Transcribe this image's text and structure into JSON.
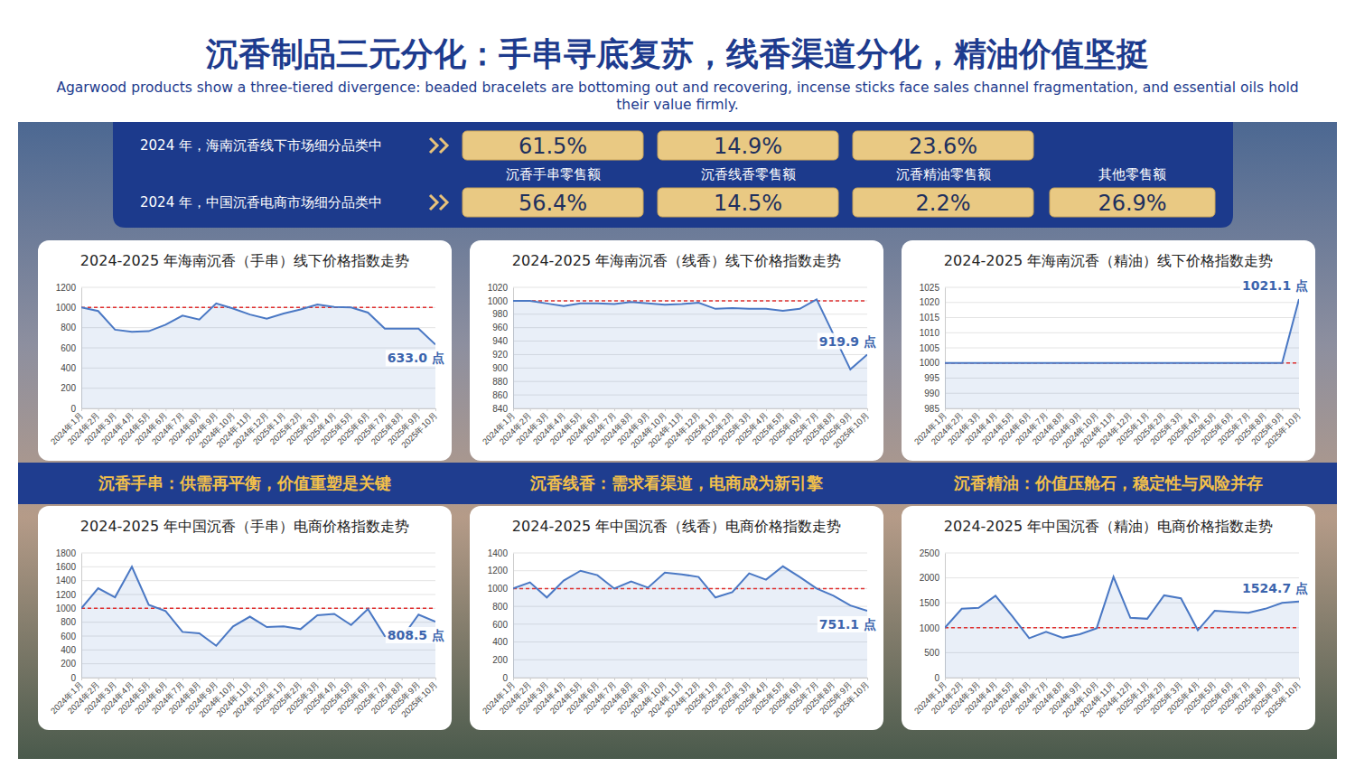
{
  "header": {
    "title": "沉香制品三元分化：手串寻底复苏，线香渠道分化，精油价值坚挺",
    "subtitle": "Agarwood products show a three-tiered divergence: beaded bracelets are bottoming out and recovering, incense sticks face sales channel fragmentation, and essential oils hold their value firmly."
  },
  "summary": {
    "categories": [
      "沉香手串零售额",
      "沉香线香零售额",
      "沉香精油零售额",
      "其他零售额"
    ],
    "rows": [
      {
        "label": "2024 年，海南沉香线下市场细分品类中",
        "cells": [
          "61.5%",
          "14.9%",
          "23.6%",
          null
        ]
      },
      {
        "label": "2024 年，中国沉香电商市场细分品类中",
        "cells": [
          "56.4%",
          "14.5%",
          "2.2%",
          "26.9%"
        ]
      }
    ]
  },
  "sections": [
    "沉香手串：供需再平衡，价值重塑是关键",
    "沉香线香：需求看渠道，电商成为新引擎",
    "沉香精油：价值压舱石，稳定性与风险并存"
  ],
  "chart_data": [
    {
      "type": "area",
      "title": "2024-2025 年海南沉香（手串）线下价格指数走势",
      "color": "#4a78c4",
      "grid": true,
      "categories": [
        "2024年1月",
        "2024年2月",
        "2024年3月",
        "2024年4月",
        "2024年5月",
        "2024年6月",
        "2024年7月",
        "2024年8月",
        "2024年9月",
        "2024年10月",
        "2024年11月",
        "2024年12月",
        "2025年1月",
        "2025年2月",
        "2025年3月",
        "2025年4月",
        "2025年5月",
        "2025年6月",
        "2025年7月",
        "2025年8月",
        "2025年9月",
        "2025年10月"
      ],
      "values": [
        1000,
        965,
        780,
        760,
        765,
        830,
        920,
        880,
        1040,
        990,
        930,
        890,
        940,
        980,
        1030,
        1005,
        1000,
        950,
        790,
        790,
        790,
        633.0
      ],
      "value_labels": [
        null,
        null,
        null,
        null,
        null,
        null,
        null,
        null,
        null,
        null,
        null,
        null,
        null,
        null,
        null,
        null,
        null,
        null,
        null,
        null,
        null,
        "633.0 点"
      ],
      "baseline": 1000,
      "ylim": [
        0,
        1200
      ],
      "yticks": [
        0,
        200,
        400,
        600,
        800,
        1000,
        1200
      ]
    },
    {
      "type": "area",
      "title": "2024-2025 年海南沉香（线香）线下价格指数走势",
      "color": "#4a78c4",
      "grid": true,
      "categories": [
        "2024年1月",
        "2024年2月",
        "2024年3月",
        "2024年4月",
        "2024年5月",
        "2024年6月",
        "2024年7月",
        "2024年8月",
        "2024年9月",
        "2024年10月",
        "2024年11月",
        "2024年12月",
        "2025年1月",
        "2025年2月",
        "2025年3月",
        "2025年4月",
        "2025年5月",
        "2025年6月",
        "2025年7月",
        "2025年8月",
        "2025年9月",
        "2025年10月"
      ],
      "values": [
        1000,
        1000,
        996,
        992,
        996,
        996,
        995,
        998,
        996,
        994,
        995,
        997,
        988,
        989,
        988,
        988,
        985,
        988,
        1002,
        950,
        898,
        919.9
      ],
      "value_labels": [
        null,
        null,
        null,
        null,
        null,
        null,
        null,
        null,
        null,
        null,
        null,
        null,
        null,
        null,
        null,
        null,
        null,
        null,
        null,
        null,
        null,
        "919.9 点"
      ],
      "baseline": 1000,
      "ylim": [
        840,
        1020
      ],
      "yticks": [
        840,
        860,
        880,
        900,
        920,
        940,
        960,
        980,
        1000,
        1020
      ]
    },
    {
      "type": "area",
      "title": "2024-2025 年海南沉香（精油）线下价格指数走势",
      "color": "#4a78c4",
      "grid": true,
      "categories": [
        "2024年1月",
        "2024年2月",
        "2024年3月",
        "2024年4月",
        "2024年5月",
        "2024年6月",
        "2024年7月",
        "2024年8月",
        "2024年9月",
        "2024年10月",
        "2024年11月",
        "2024年12月",
        "2025年1月",
        "2025年2月",
        "2025年3月",
        "2025年4月",
        "2025年5月",
        "2025年6月",
        "2025年7月",
        "2025年8月",
        "2025年9月",
        "2025年10月"
      ],
      "values": [
        1000,
        1000,
        1000,
        1000,
        1000,
        1000,
        1000,
        1000,
        1000,
        1000,
        1000,
        1000,
        1000,
        1000,
        1000,
        1000,
        1000,
        1000,
        1000,
        1000,
        1000,
        1021.1
      ],
      "value_labels": [
        null,
        null,
        null,
        null,
        null,
        null,
        null,
        null,
        null,
        null,
        null,
        null,
        null,
        null,
        null,
        null,
        null,
        null,
        null,
        null,
        null,
        "1021.1 点"
      ],
      "baseline": 1000,
      "ylim": [
        985,
        1025
      ],
      "yticks": [
        985,
        990,
        995,
        1000,
        1005,
        1010,
        1015,
        1020,
        1025
      ]
    },
    {
      "type": "area",
      "title": "2024-2025 年中国沉香（手串）电商价格指数走势",
      "color": "#4a78c4",
      "grid": true,
      "categories": [
        "2024年1月",
        "2024年2月",
        "2024年3月",
        "2024年4月",
        "2024年5月",
        "2024年6月",
        "2024年7月",
        "2024年8月",
        "2024年9月",
        "2024年10月",
        "2024年11月",
        "2024年12月",
        "2025年1月",
        "2025年2月",
        "2025年3月",
        "2025年4月",
        "2025年5月",
        "2025年6月",
        "2025年7月",
        "2025年8月",
        "2025年9月",
        "2025年10月"
      ],
      "values": [
        1000,
        1290,
        1160,
        1600,
        1050,
        960,
        660,
        640,
        460,
        740,
        880,
        730,
        740,
        700,
        900,
        920,
        760,
        990,
        600,
        570,
        910,
        808.5
      ],
      "value_labels": [
        null,
        null,
        null,
        null,
        null,
        null,
        null,
        null,
        null,
        null,
        null,
        null,
        null,
        null,
        null,
        null,
        null,
        null,
        null,
        null,
        null,
        "808.5 点"
      ],
      "baseline": 1000,
      "ylim": [
        0,
        1800
      ],
      "yticks": [
        0,
        200,
        400,
        600,
        800,
        1000,
        1200,
        1400,
        1600,
        1800
      ]
    },
    {
      "type": "area",
      "title": "2024-2025 年中国沉香（线香）电商价格指数走势",
      "color": "#4a78c4",
      "grid": true,
      "categories": [
        "2024年1月",
        "2024年2月",
        "2024年3月",
        "2024年4月",
        "2024年5月",
        "2024年6月",
        "2024年7月",
        "2024年8月",
        "2024年9月",
        "2024年10月",
        "2024年11月",
        "2024年12月",
        "2025年1月",
        "2025年2月",
        "2025年3月",
        "2025年4月",
        "2025年5月",
        "2025年6月",
        "2025年7月",
        "2025年8月",
        "2025年9月",
        "2025年10月"
      ],
      "values": [
        1000,
        1070,
        900,
        1090,
        1200,
        1150,
        1000,
        1080,
        1010,
        1180,
        1160,
        1130,
        900,
        960,
        1170,
        1100,
        1250,
        1130,
        1000,
        920,
        810,
        751.1
      ],
      "value_labels": [
        null,
        null,
        null,
        null,
        null,
        null,
        null,
        null,
        null,
        null,
        null,
        null,
        null,
        null,
        null,
        null,
        null,
        null,
        null,
        null,
        null,
        "751.1 点"
      ],
      "baseline": 1000,
      "ylim": [
        0,
        1400
      ],
      "yticks": [
        0,
        200,
        400,
        600,
        800,
        1000,
        1200,
        1400
      ]
    },
    {
      "type": "area",
      "title": "2024-2025 年中国沉香（精油）电商价格指数走势",
      "color": "#4a78c4",
      "grid": true,
      "categories": [
        "2024年1月",
        "2024年2月",
        "2024年3月",
        "2024年4月",
        "2024年5月",
        "2024年6月",
        "2024年7月",
        "2024年8月",
        "2024年9月",
        "2024年10月",
        "2024年11月",
        "2024年12月",
        "2025年1月",
        "2025年2月",
        "2025年3月",
        "2025年4月",
        "2025年5月",
        "2025年6月",
        "2025年7月",
        "2025年8月",
        "2025年9月",
        "2025年10月"
      ],
      "values": [
        1000,
        1380,
        1400,
        1640,
        1230,
        790,
        920,
        800,
        870,
        990,
        2020,
        1200,
        1180,
        1650,
        1590,
        950,
        1340,
        1320,
        1300,
        1380,
        1500,
        1524.7
      ],
      "value_labels": [
        null,
        null,
        null,
        null,
        null,
        null,
        null,
        null,
        null,
        null,
        null,
        null,
        null,
        null,
        null,
        null,
        null,
        null,
        null,
        null,
        null,
        "1524.7 点"
      ],
      "baseline": 1000,
      "ylim": [
        0,
        2500
      ],
      "yticks": [
        0,
        500,
        1000,
        1500,
        2000,
        2500
      ]
    }
  ]
}
